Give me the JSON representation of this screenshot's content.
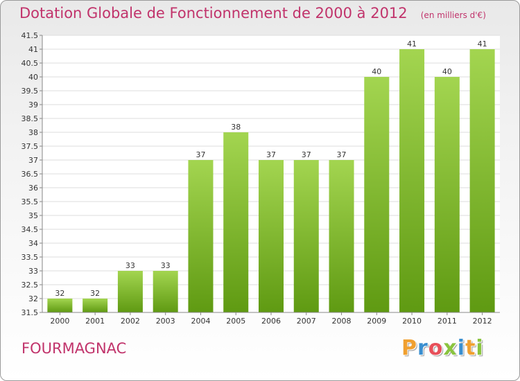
{
  "header": {
    "title": "Dotation Globale de Fonctionnement de 2000 à 2012",
    "unit": "(en milliers d'€)"
  },
  "footer": {
    "commune": "FOURMAGNAC",
    "brand_letters": [
      {
        "char": "P",
        "color": "#f0a030"
      },
      {
        "char": "r",
        "color": "#3a8fd0"
      },
      {
        "char": "o",
        "color": "#e8505a"
      },
      {
        "char": "x",
        "color": "#8ac43f"
      },
      {
        "char": "i",
        "color": "#3a8fd0"
      },
      {
        "char": "t",
        "color": "#f0a030"
      },
      {
        "char": "i",
        "color": "#8ac43f"
      }
    ]
  },
  "chart_data": {
    "type": "bar",
    "title": "Dotation Globale de Fonctionnement de 2000 à 2012",
    "subtitle": "(en milliers d'€)",
    "categories": [
      "2000",
      "2001",
      "2002",
      "2003",
      "2004",
      "2005",
      "2006",
      "2007",
      "2008",
      "2009",
      "2010",
      "2011",
      "2012"
    ],
    "values": [
      32,
      32,
      33,
      33,
      37,
      38,
      37,
      37,
      37,
      40,
      41,
      40,
      41
    ],
    "ylim": [
      31.5,
      41.5
    ],
    "yticks": [
      "31.5",
      "32",
      "32.5",
      "33",
      "33.5",
      "34",
      "34.5",
      "35",
      "35.5",
      "36",
      "36.5",
      "37",
      "37.5",
      "38",
      "38.5",
      "39",
      "39.5",
      "40",
      "40.5",
      "41",
      "41.5"
    ],
    "grid": true,
    "legend": "none",
    "colors": {
      "bar_top": "#a3d550",
      "bar_bottom": "#5f9a12",
      "text": "#c1336b"
    }
  }
}
